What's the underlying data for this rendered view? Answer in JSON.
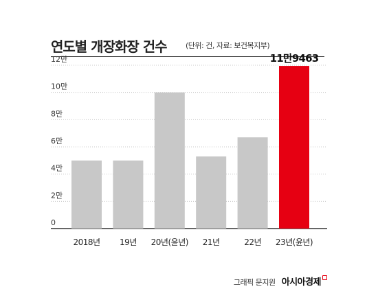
{
  "header": {
    "title": "연도별 개장화장 건수",
    "subtitle": "(단위: 건, 자료: 보건복지부)"
  },
  "footer": {
    "credit": "그래픽 문지원",
    "brand": "아시아경제"
  },
  "colors": {
    "bar": "#c8c8c8",
    "highlight": "#e60012",
    "grid": "#bbbbbb",
    "axis": "#333333"
  },
  "chart_data": {
    "type": "bar",
    "categories": [
      "2018년",
      "19년",
      "20년(윤년)",
      "21년",
      "22년",
      "23년(윤년)"
    ],
    "values": [
      50000,
      50000,
      100000,
      53000,
      67000,
      119463
    ],
    "highlight_index": 5,
    "highlight_label": "11만9463",
    "ylim": [
      0,
      120000
    ],
    "yticks": [
      0,
      20000,
      40000,
      60000,
      80000,
      100000,
      120000
    ],
    "ytick_labels": [
      "0",
      "2만",
      "4만",
      "6만",
      "8만",
      "10만",
      "12만"
    ],
    "grid": true
  }
}
